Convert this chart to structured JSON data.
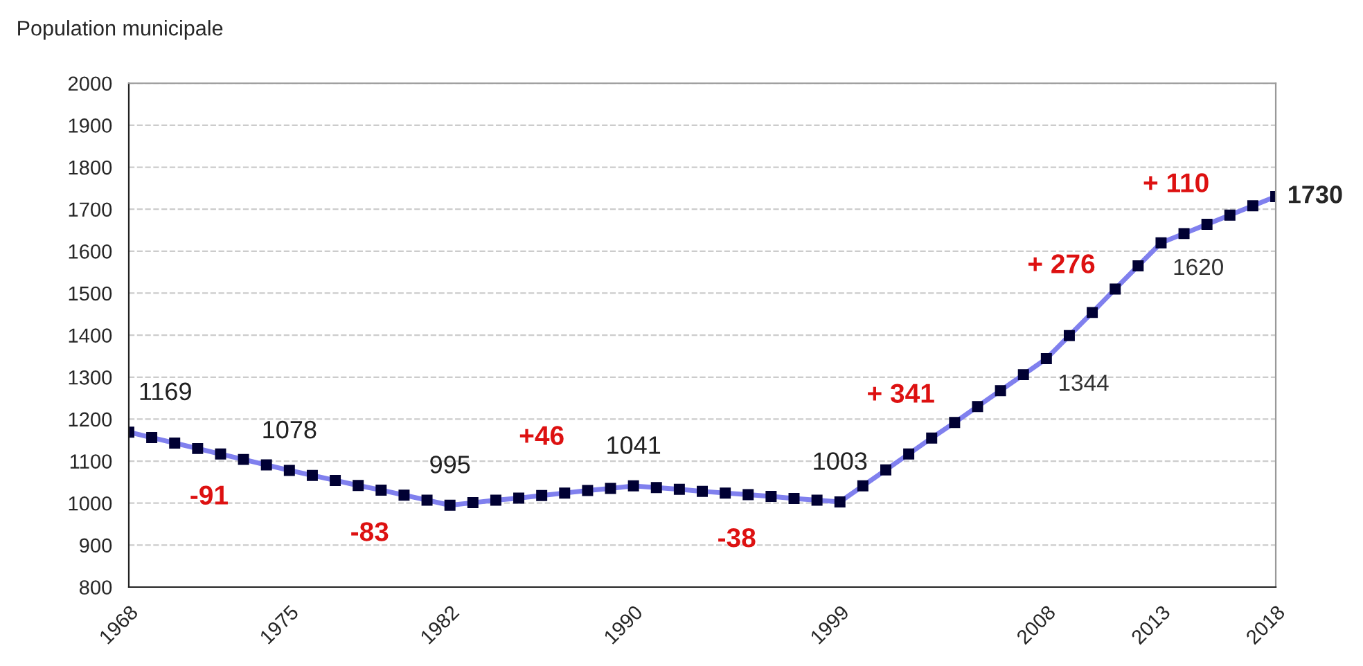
{
  "chart_data": {
    "type": "line",
    "ylabel": "Population municipale",
    "x": [
      1968,
      1969,
      1970,
      1971,
      1972,
      1973,
      1974,
      1975,
      1976,
      1977,
      1978,
      1979,
      1980,
      1981,
      1982,
      1983,
      1984,
      1985,
      1986,
      1987,
      1988,
      1989,
      1990,
      1991,
      1992,
      1993,
      1994,
      1995,
      1996,
      1997,
      1998,
      1999,
      2000,
      2001,
      2002,
      2003,
      2004,
      2005,
      2006,
      2007,
      2008,
      2009,
      2010,
      2011,
      2012,
      2013,
      2014,
      2015,
      2016,
      2017,
      2018
    ],
    "series": [
      {
        "color": "#8080ee",
        "values": [
          1169,
          1156,
          1143,
          1130,
          1117,
          1104,
          1091,
          1078,
          1066,
          1054,
          1042,
          1031,
          1019,
          1007,
          995,
          1001,
          1007,
          1012,
          1018,
          1024,
          1030,
          1035,
          1041,
          1037,
          1033,
          1028,
          1024,
          1020,
          1016,
          1011,
          1007,
          1003,
          1041,
          1079,
          1117,
          1155,
          1192,
          1230,
          1268,
          1306,
          1344,
          1399,
          1454,
          1510,
          1565,
          1620,
          1642,
          1664,
          1686,
          1708,
          1730
        ],
        "value_labels": [
          "1169",
          null,
          null,
          null,
          null,
          null,
          null,
          "1078",
          null,
          null,
          null,
          null,
          null,
          null,
          "995",
          null,
          null,
          null,
          null,
          null,
          null,
          null,
          "1041",
          null,
          null,
          null,
          null,
          null,
          null,
          null,
          null,
          "1003",
          null,
          null,
          null,
          null,
          null,
          null,
          null,
          null,
          "1344",
          null,
          null,
          null,
          null,
          "1620",
          null,
          null,
          null,
          null,
          "1730"
        ]
      }
    ],
    "xlim": [
      1968,
      2018
    ],
    "xticks": [
      1968,
      1975,
      1982,
      1990,
      1999,
      2008,
      2013,
      2018
    ],
    "ylim": [
      800,
      2000
    ],
    "yticks": [
      800,
      900,
      1000,
      1100,
      1200,
      1300,
      1400,
      1500,
      1600,
      1700,
      1800,
      1900,
      2000
    ],
    "grid": "y",
    "marker": "square",
    "line_style": "solid",
    "annotations": [
      "-91",
      "-83",
      "+46",
      "-38",
      "+ 341",
      "+ 276",
      "+ 110"
    ]
  }
}
